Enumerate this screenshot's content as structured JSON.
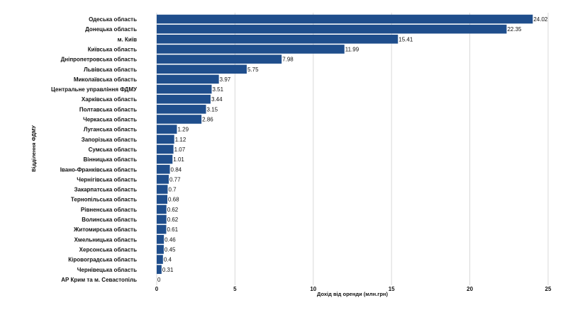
{
  "chart_data": {
    "type": "bar",
    "orientation": "horizontal",
    "xlabel": "Дохід від оренди (млн.грн)",
    "ylabel": "Відділення ФДМУ",
    "xlim": [
      0,
      25
    ],
    "xticks": [
      0,
      5,
      10,
      15,
      20,
      25
    ],
    "grid": "vertical",
    "bar_color": "#1f4e8c",
    "categories": [
      "Одеська область",
      "Донецька область",
      "м. Київ",
      "Київська область",
      "Дніпропетровська область",
      "Львівська область",
      "Миколаївська область",
      "Центральне управління ФДМУ",
      "Харківська область",
      "Полтавська область",
      "Черкаська область",
      "Луганська область",
      "Запорізька область",
      "Сумська область",
      "Вінницька область",
      "Івано-Франківська область",
      "Чернігівська область",
      "Закарпатська область",
      "Тернопільська область",
      "Рівненська область",
      "Волинська область",
      "Житомирська область",
      "Хмельницька область",
      "Херсонська область",
      "Кіровоградська область",
      "Чернівецька область",
      "АР Крим та м. Севастопіль"
    ],
    "values": [
      24.02,
      22.35,
      15.41,
      11.99,
      7.98,
      5.75,
      3.97,
      3.51,
      3.44,
      3.15,
      2.86,
      1.29,
      1.12,
      1.07,
      1.01,
      0.84,
      0.77,
      0.7,
      0.68,
      0.62,
      0.62,
      0.61,
      0.46,
      0.45,
      0.4,
      0.31,
      0
    ],
    "value_labels": [
      "24.02",
      "22.35",
      "15.41",
      "11.99",
      "7.98",
      "5.75",
      "3.97",
      "3.51",
      "3.44",
      "3.15",
      "2.86",
      "1.29",
      "1.12",
      "1.07",
      "1.01",
      "0.84",
      "0.77",
      "0.7",
      "0.68",
      "0.62",
      "0.62",
      "0.61",
      "0.46",
      "0.45",
      "0.4",
      "0.31",
      "0"
    ]
  }
}
